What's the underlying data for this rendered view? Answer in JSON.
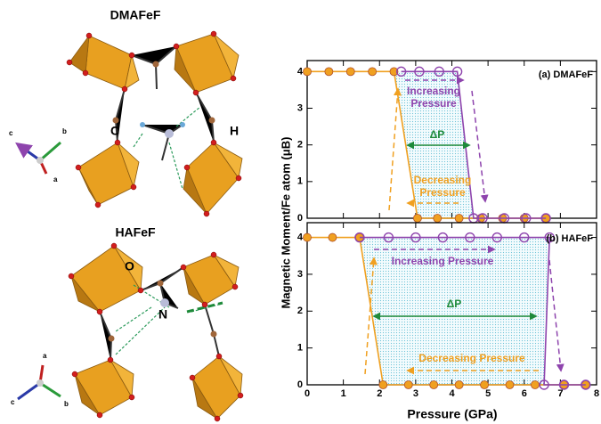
{
  "structures": [
    {
      "title": "DMAFeF",
      "labels": [
        "C",
        "H"
      ],
      "axes": [
        "c",
        "b",
        "a"
      ]
    },
    {
      "title": "HAFeF",
      "labels": [
        "O",
        "N"
      ],
      "axes": [
        "a",
        "c",
        "b"
      ]
    }
  ],
  "y_label": "Magnetic Moment/Fe atom (μB)",
  "chart_data": [
    {
      "type": "line",
      "annotations": [
        "(a) DMAFeF",
        "Increasing",
        "Pressure",
        "ΔP",
        "Decreasing",
        "Pressure"
      ],
      "xlim": [
        0,
        8
      ],
      "ylim": [
        0,
        4.3
      ],
      "yticks": [
        0,
        1,
        2,
        3,
        4
      ],
      "series": [
        {
          "color": "#f0a020",
          "marker": "circle",
          "x": [
            0,
            0.6,
            1.2,
            1.8,
            2.4,
            3.05,
            3.6,
            4.2,
            4.8,
            5.4,
            6.0,
            6.6
          ],
          "values": [
            4,
            4,
            4,
            4,
            4,
            0,
            0,
            0,
            0,
            0,
            0,
            0
          ]
        },
        {
          "color": "#8e44ad",
          "marker": "open-circle",
          "x": [
            2.6,
            3.1,
            3.65,
            4.15,
            4.6,
            4.85,
            5.45,
            6.05,
            6.6
          ],
          "values": [
            4,
            4,
            4,
            4,
            0,
            0,
            0,
            0,
            0
          ]
        }
      ]
    },
    {
      "type": "line",
      "annotations": [
        "(b) HAFeF",
        "Increasing Pressure",
        "ΔP",
        "Decreasing Pressure"
      ],
      "x_label": "Pressure (GPa)",
      "xlim": [
        0,
        8
      ],
      "xticks": [
        0,
        1,
        2,
        3,
        4,
        5,
        6,
        7,
        8
      ],
      "ylim": [
        0,
        4.4
      ],
      "yticks": [
        0,
        1,
        2,
        3,
        4
      ],
      "series": [
        {
          "color": "#f0a020",
          "marker": "circle",
          "x": [
            0,
            0.7,
            1.45,
            2.1,
            2.8,
            3.5,
            4.2,
            4.9,
            5.6,
            6.3,
            7.1,
            7.7
          ],
          "values": [
            4,
            4,
            4,
            0,
            0,
            0,
            0,
            0,
            0,
            0,
            0,
            0
          ]
        },
        {
          "color": "#8e44ad",
          "marker": "open-circle",
          "x": [
            1.45,
            2.25,
            3.0,
            3.75,
            4.5,
            5.25,
            6.0,
            6.7,
            6.55,
            7.1,
            7.7
          ],
          "values": [
            4,
            4,
            4,
            4,
            4,
            4,
            4,
            4,
            0,
            0,
            0
          ]
        }
      ]
    }
  ]
}
